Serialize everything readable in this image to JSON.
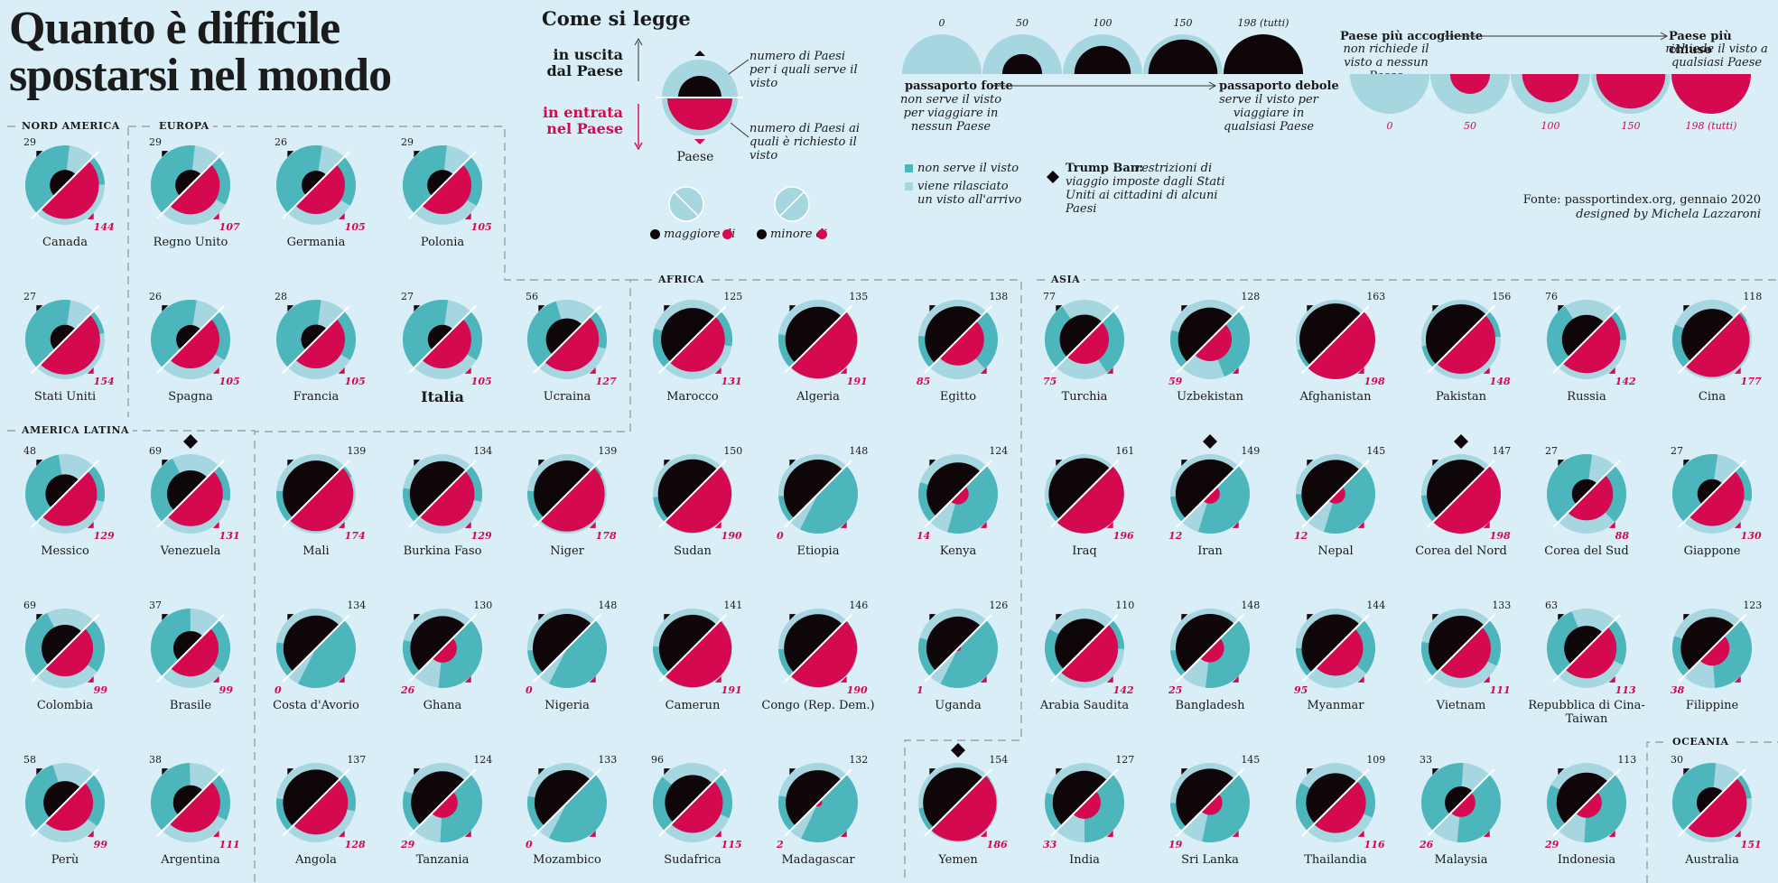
{
  "title": "Quanto è difficile spostarsi nel mondo",
  "legend": {
    "heading": "Come si legge",
    "out_label": "in uscita dal Paese",
    "in_label": "in entrata nel Paese",
    "out_desc": "numero di Paesi per i quali serve il visto",
    "in_desc": "numero di Paesi ai quali è richiesto il visto",
    "paese": "Paese",
    "maggiore": "maggiore di",
    "minore": "minore di",
    "scale_out_ticks": [
      "0",
      "50",
      "100",
      "150",
      "198 (tutti)"
    ],
    "strong_label": "passaporto forte",
    "strong_desc": "non serve il visto per viaggiare in nessun Paese",
    "weak_label": "passaporto debole",
    "weak_desc": "serve il visto per viaggiare in qualsiasi Paese",
    "welcoming_label": "Paese più accogliente",
    "welcoming_desc": "non richiede il visto a nessun Paese",
    "closed_label": "Paese più chiuso",
    "closed_desc": "richiede il visto a qualsiasi Paese",
    "scale_in_ticks": [
      "0",
      "50",
      "100",
      "150",
      "198 (tutti)"
    ],
    "no_visa": "non serve il visto",
    "visa_arrival": "viene rilasciato un visto all'arrivo",
    "trump_title": "Trump Ban:",
    "trump_desc": "restrizioni di viaggio imposte dagli Stati Uniti ai cittadini di alcuni Paesi",
    "source": "Fonte: passportindex.org, gennaio 2020",
    "designer": "designed by Michela Lazzaroni"
  },
  "colors": {
    "background": "#d9eef6",
    "teal": "#4db6bc",
    "light_blue": "#a6d6e0",
    "black": "#0e0608",
    "magenta": "#d4094f"
  },
  "regions": [
    "NORD AMERICA",
    "EUROPA",
    "AMERICA LATINA",
    "AFRICA",
    "ASIA",
    "OCEANIA"
  ],
  "countries": [
    {
      "name": "Canada",
      "out": 29,
      "in": 144,
      "trump": false
    },
    {
      "name": "Regno Unito",
      "out": 29,
      "in": 107,
      "trump": false
    },
    {
      "name": "Germania",
      "out": 26,
      "in": 105,
      "trump": false
    },
    {
      "name": "Polonia",
      "out": 29,
      "in": 105,
      "trump": false
    },
    {
      "name": "Stati Uniti",
      "out": 27,
      "in": 154,
      "trump": false
    },
    {
      "name": "Spagna",
      "out": 26,
      "in": 105,
      "trump": false
    },
    {
      "name": "Francia",
      "out": 28,
      "in": 105,
      "trump": false
    },
    {
      "name": "Italia",
      "out": 27,
      "in": 105,
      "trump": false
    },
    {
      "name": "Ucraina",
      "out": 56,
      "in": 127,
      "trump": false
    },
    {
      "name": "Marocco",
      "out": 125,
      "in": 131,
      "trump": false
    },
    {
      "name": "Algeria",
      "out": 135,
      "in": 191,
      "trump": false
    },
    {
      "name": "Egitto",
      "out": 138,
      "in": 85,
      "trump": false
    },
    {
      "name": "Turchia",
      "out": 77,
      "in": 75,
      "trump": false
    },
    {
      "name": "Uzbekistan",
      "out": 128,
      "in": 59,
      "trump": false
    },
    {
      "name": "Afghanistan",
      "out": 163,
      "in": 198,
      "trump": false
    },
    {
      "name": "Pakistan",
      "out": 156,
      "in": 148,
      "trump": false
    },
    {
      "name": "Russia",
      "out": 76,
      "in": 142,
      "trump": false
    },
    {
      "name": "Cina",
      "out": 118,
      "in": 177,
      "trump": false
    },
    {
      "name": "Messico",
      "out": 48,
      "in": 129,
      "trump": false
    },
    {
      "name": "Venezuela",
      "out": 69,
      "in": 131,
      "trump": true
    },
    {
      "name": "Mali",
      "out": 139,
      "in": 174,
      "trump": false
    },
    {
      "name": "Burkina Faso",
      "out": 134,
      "in": 129,
      "trump": false
    },
    {
      "name": "Niger",
      "out": 139,
      "in": 178,
      "trump": false
    },
    {
      "name": "Sudan",
      "out": 150,
      "in": 190,
      "trump": false
    },
    {
      "name": "Etiopia",
      "out": 148,
      "in": 0,
      "trump": false
    },
    {
      "name": "Kenya",
      "out": 124,
      "in": 14,
      "trump": false
    },
    {
      "name": "Iraq",
      "out": 161,
      "in": 196,
      "trump": false
    },
    {
      "name": "Iran",
      "out": 149,
      "in": 12,
      "trump": true
    },
    {
      "name": "Nepal",
      "out": 145,
      "in": 12,
      "trump": false
    },
    {
      "name": "Corea del Nord",
      "out": 147,
      "in": 198,
      "trump": true
    },
    {
      "name": "Corea del Sud",
      "out": 27,
      "in": 88,
      "trump": false
    },
    {
      "name": "Giappone",
      "out": 27,
      "in": 130,
      "trump": false
    },
    {
      "name": "Colombia",
      "out": 69,
      "in": 99,
      "trump": false
    },
    {
      "name": "Brasile",
      "out": 37,
      "in": 99,
      "trump": false
    },
    {
      "name": "Costa d'Avorio",
      "out": 134,
      "in": 0,
      "trump": false
    },
    {
      "name": "Ghana",
      "out": 130,
      "in": 26,
      "trump": false
    },
    {
      "name": "Nigeria",
      "out": 148,
      "in": 0,
      "trump": false
    },
    {
      "name": "Camerun",
      "out": 141,
      "in": 191,
      "trump": false
    },
    {
      "name": "Congo (Rep. Dem.)",
      "out": 146,
      "in": 190,
      "trump": false
    },
    {
      "name": "Uganda",
      "out": 126,
      "in": 1,
      "trump": false
    },
    {
      "name": "Arabia Saudita",
      "out": 110,
      "in": 142,
      "trump": false
    },
    {
      "name": "Bangladesh",
      "out": 148,
      "in": 25,
      "trump": false
    },
    {
      "name": "Myanmar",
      "out": 144,
      "in": 95,
      "trump": false
    },
    {
      "name": "Vietnam",
      "out": 133,
      "in": 111,
      "trump": false
    },
    {
      "name": "Repubblica di Cina-Taiwan",
      "out": 63,
      "in": 113,
      "trump": false
    },
    {
      "name": "Filippine",
      "out": 123,
      "in": 38,
      "trump": false
    },
    {
      "name": "Perù",
      "out": 58,
      "in": 99,
      "trump": false
    },
    {
      "name": "Argentina",
      "out": 38,
      "in": 111,
      "trump": false
    },
    {
      "name": "Angola",
      "out": 137,
      "in": 128,
      "trump": false
    },
    {
      "name": "Tanzania",
      "out": 124,
      "in": 29,
      "trump": false
    },
    {
      "name": "Mozambico",
      "out": 133,
      "in": 0,
      "trump": false
    },
    {
      "name": "Sudafrica",
      "out": 96,
      "in": 115,
      "trump": false
    },
    {
      "name": "Madagascar",
      "out": 132,
      "in": 2,
      "trump": false
    },
    {
      "name": "Yemen",
      "out": 154,
      "in": 186,
      "trump": true
    },
    {
      "name": "India",
      "out": 127,
      "in": 33,
      "trump": false
    },
    {
      "name": "Sri Lanka",
      "out": 145,
      "in": 19,
      "trump": false
    },
    {
      "name": "Thailandia",
      "out": 109,
      "in": 116,
      "trump": false
    },
    {
      "name": "Malaysia",
      "out": 33,
      "in": 26,
      "trump": false
    },
    {
      "name": "Indonesia",
      "out": 113,
      "in": 29,
      "trump": false
    },
    {
      "name": "Australia",
      "out": 30,
      "in": 151,
      "trump": false
    }
  ]
}
